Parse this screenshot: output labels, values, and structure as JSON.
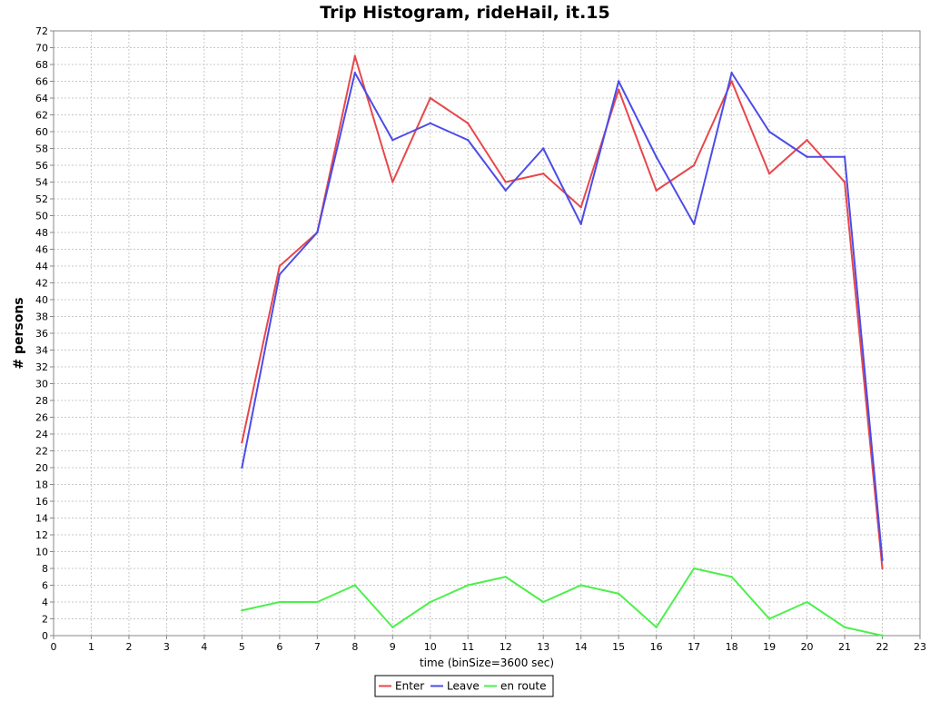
{
  "chart_data": {
    "type": "line",
    "title": "Trip Histogram, rideHail, it.15",
    "xlabel": "time (binSize=3600 sec)",
    "ylabel": "# persons",
    "xlim": [
      0,
      23
    ],
    "ylim": [
      0,
      72
    ],
    "x_ticks": [
      0,
      1,
      2,
      3,
      4,
      5,
      6,
      7,
      8,
      9,
      10,
      11,
      12,
      13,
      14,
      15,
      16,
      17,
      18,
      19,
      20,
      21,
      22,
      23
    ],
    "y_ticks": [
      0,
      2,
      4,
      6,
      8,
      10,
      12,
      14,
      16,
      18,
      20,
      22,
      24,
      26,
      28,
      30,
      32,
      34,
      36,
      38,
      40,
      42,
      44,
      46,
      48,
      50,
      52,
      54,
      56,
      58,
      60,
      62,
      64,
      66,
      68,
      70,
      72
    ],
    "grid": true,
    "legend_position": "bottom-center",
    "x": [
      5,
      6,
      7,
      8,
      9,
      10,
      11,
      12,
      13,
      14,
      15,
      16,
      17,
      18,
      19,
      20,
      21,
      22
    ],
    "series": [
      {
        "name": "Enter",
        "color": "#e8474b",
        "values": [
          23,
          44,
          48,
          69,
          54,
          64,
          61,
          54,
          55,
          51,
          65,
          53,
          56,
          66,
          55,
          59,
          54,
          8
        ]
      },
      {
        "name": "Leave",
        "color": "#4c4ce8",
        "values": [
          20,
          43,
          48,
          67,
          59,
          61,
          59,
          53,
          58,
          49,
          66,
          57,
          49,
          67,
          60,
          57,
          57,
          9
        ]
      },
      {
        "name": "en route",
        "color": "#4cf04c",
        "values": [
          3,
          4,
          4,
          6,
          1,
          4,
          6,
          7,
          4,
          6,
          5,
          1,
          8,
          7,
          2,
          4,
          1,
          0
        ]
      }
    ]
  }
}
